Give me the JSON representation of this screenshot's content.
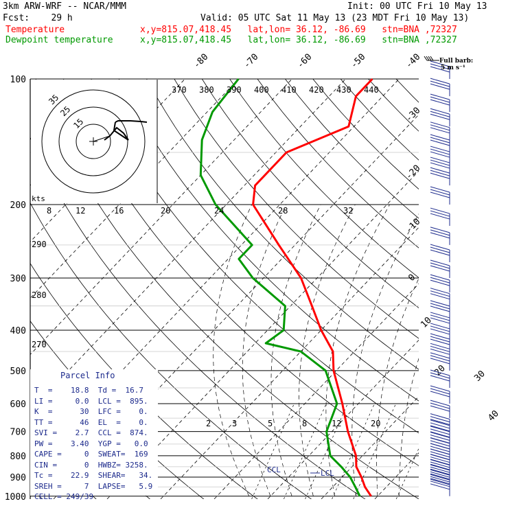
{
  "header": {
    "model": "3km ARW-WRF -- NCAR/MMM",
    "init": "Init: 00 UTC Fri 10 May 13",
    "fcst": "Fcst:    29 h",
    "valid": "Valid: 05 UTC Sat 11 May 13 (23 MDT Fri 10 May 13)",
    "temp_label": "Temperature",
    "temp_loc": "x,y=815.07,418.45   lat,lon= 36.12, -86.69   stn=BNA ,72327",
    "dew_label": "Dewpoint temperature",
    "dew_loc": "x,y=815.07,418.45   lat,lon= 36.12, -86.69   stn=BNA ,72327",
    "barb_legend_1": "Full barb:",
    "barb_legend_2": "5 m s⁻¹"
  },
  "colors": {
    "temperature": "#ff0000",
    "dewpoint": "#009900",
    "blue": "#1c2a8c",
    "grid": "#000000",
    "wind": "#1c2a8c"
  },
  "parcel_info": {
    "title": "Parcel Info",
    "rows": [
      "T  =    18.8  Td =  16.7",
      "LI =     0.0  LCL =  895.",
      "K  =      30  LFC =    0.",
      "TT =      46  EL  =    0.",
      "SVI =    2.7  CCL =  874.",
      "PW =    3.40  YGP =   0.0",
      "CAPE =     0  SWEAT=  169",
      "CIN =      0  HWBZ= 3258.",
      "Tc =    22.9  SHEAR=   34.",
      "SREH =     7  LAPSE=   5.9",
      "CELL = 249/39"
    ]
  },
  "chart_data": {
    "type": "skew-t",
    "pressure_ticks": [
      100,
      200,
      300,
      400,
      500,
      600,
      700,
      800,
      900,
      1000
    ],
    "isotherm_labels": [
      -80,
      -70,
      -60,
      -50,
      -40,
      -30,
      -20,
      -10,
      0,
      10,
      20,
      30,
      40
    ],
    "theta_labels": [
      370,
      380,
      390,
      400,
      410,
      420,
      430,
      440
    ],
    "dry_adiabat_labels": [
      290,
      280,
      270
    ],
    "mixing_ratio_labels": [
      2,
      3,
      5,
      8,
      12,
      20
    ],
    "hodograph_speed_labels": [
      8,
      12,
      16,
      20,
      24,
      28,
      32
    ],
    "hodograph_speed_unit": "kts",
    "hodograph_ring_labels": [
      15,
      25,
      35
    ],
    "level_labels": [
      "CCL",
      "LCL"
    ],
    "temperature": [
      {
        "p": 1000,
        "t": 18.8
      },
      {
        "p": 950,
        "t": 16.0
      },
      {
        "p": 900,
        "t": 13.6
      },
      {
        "p": 850,
        "t": 10.8
      },
      {
        "p": 800,
        "t": 8.8
      },
      {
        "p": 700,
        "t": 3.0
      },
      {
        "p": 600,
        "t": -3.0
      },
      {
        "p": 500,
        "t": -10.5
      },
      {
        "p": 450,
        "t": -14.0
      },
      {
        "p": 400,
        "t": -20.0
      },
      {
        "p": 350,
        "t": -26.0
      },
      {
        "p": 300,
        "t": -33.0
      },
      {
        "p": 250,
        "t": -43.0
      },
      {
        "p": 200,
        "t": -55.0
      },
      {
        "p": 180,
        "t": -58.0
      },
      {
        "p": 150,
        "t": -58.0
      },
      {
        "p": 130,
        "t": -51.0
      },
      {
        "p": 110,
        "t": -55.0
      },
      {
        "p": 100,
        "t": -55.0
      }
    ],
    "dewpoint": [
      {
        "p": 1000,
        "t": 16.7
      },
      {
        "p": 950,
        "t": 14.2
      },
      {
        "p": 900,
        "t": 11.5
      },
      {
        "p": 850,
        "t": 8.0
      },
      {
        "p": 800,
        "t": 4.0
      },
      {
        "p": 700,
        "t": -1.0
      },
      {
        "p": 600,
        "t": -4.0
      },
      {
        "p": 500,
        "t": -12.0
      },
      {
        "p": 450,
        "t": -20.0
      },
      {
        "p": 430,
        "t": -28.0
      },
      {
        "p": 400,
        "t": -27.0
      },
      {
        "p": 350,
        "t": -31.0
      },
      {
        "p": 300,
        "t": -42.0
      },
      {
        "p": 270,
        "t": -48.0
      },
      {
        "p": 250,
        "t": -48.0
      },
      {
        "p": 200,
        "t": -62.0
      },
      {
        "p": 170,
        "t": -70.0
      },
      {
        "p": 140,
        "t": -76.0
      },
      {
        "p": 120,
        "t": -79.0
      },
      {
        "p": 100,
        "t": -80.0
      }
    ],
    "wind_barb_pressures": [
      100,
      110,
      120,
      130,
      140,
      150,
      160,
      170,
      180,
      200,
      225,
      250,
      275,
      300,
      325,
      350,
      375,
      400,
      425,
      450,
      475,
      500,
      550,
      600,
      650,
      700,
      725,
      750,
      775,
      800,
      825,
      850,
      875,
      900,
      925,
      950,
      975,
      1000
    ]
  }
}
